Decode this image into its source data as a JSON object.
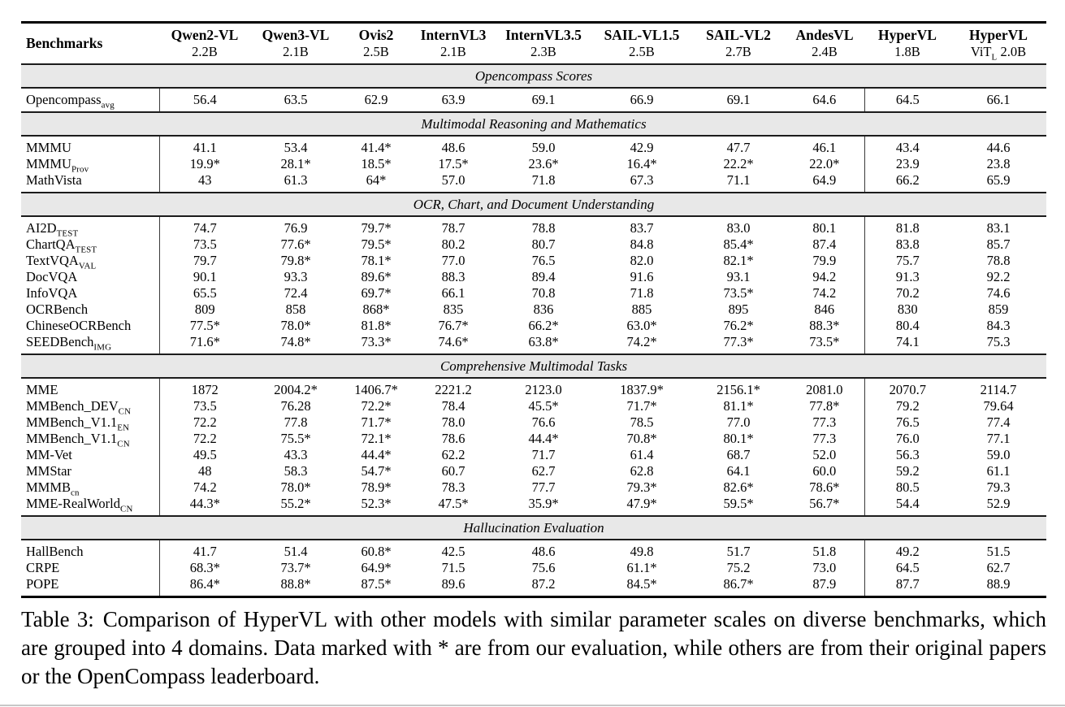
{
  "colors": {
    "band_bg": "#e8e8e8",
    "rule": "#000000",
    "text": "#000000"
  },
  "table": {
    "benchmarks_header": "Benchmarks",
    "columns": [
      {
        "name": "Qwen2-VL",
        "size": "2.2B"
      },
      {
        "name": "Qwen3-VL",
        "size": "2.1B"
      },
      {
        "name": "Ovis2",
        "size": "2.5B"
      },
      {
        "name": "InternVL3",
        "size": "2.1B"
      },
      {
        "name": "InternVL3.5",
        "size": "2.3B"
      },
      {
        "name": "SAIL-VL1.5",
        "size": "2.5B"
      },
      {
        "name": "SAIL-VL2",
        "size": "2.7B"
      },
      {
        "name": "AndesVL",
        "size": "2.4B"
      },
      {
        "name": "HyperVL",
        "size": "1.8B"
      },
      {
        "name": "HyperVL",
        "size": "ViT~L~ 2.0B"
      }
    ],
    "sections": [
      {
        "title": "Opencompass Scores",
        "rows": [
          {
            "label": "Opencompass~avg~",
            "values": [
              "56.4",
              "63.5",
              "62.9",
              "63.9",
              "69.1",
              "66.9",
              "69.1",
              "64.6",
              "64.5",
              "66.1"
            ]
          }
        ]
      },
      {
        "title": "Multimodal Reasoning and Mathematics",
        "rows": [
          {
            "label": "MMMU",
            "values": [
              "41.1",
              "53.4",
              "41.4*",
              "48.6",
              "59.0",
              "42.9",
              "47.7",
              "46.1",
              "43.4",
              "44.6"
            ]
          },
          {
            "label": "MMMU~Prov~",
            "values": [
              "19.9*",
              "28.1*",
              "18.5*",
              "17.5*",
              "23.6*",
              "16.4*",
              "22.2*",
              "22.0*",
              "23.9",
              "23.8"
            ]
          },
          {
            "label": "MathVista",
            "values": [
              "43",
              "61.3",
              "64*",
              "57.0",
              "71.8",
              "67.3",
              "71.1",
              "64.9",
              "66.2",
              "65.9"
            ]
          }
        ]
      },
      {
        "title": "OCR, Chart, and Document Understanding",
        "rows": [
          {
            "label": "AI2D~TEST~",
            "values": [
              "74.7",
              "76.9",
              "79.7*",
              "78.7",
              "78.8",
              "83.7",
              "83.0",
              "80.1",
              "81.8",
              "83.1"
            ]
          },
          {
            "label": "ChartQA~TEST~",
            "values": [
              "73.5",
              "77.6*",
              "79.5*",
              "80.2",
              "80.7",
              "84.8",
              "85.4*",
              "87.4",
              "83.8",
              "85.7"
            ]
          },
          {
            "label": "TextVQA~VAL~",
            "values": [
              "79.7",
              "79.8*",
              "78.1*",
              "77.0",
              "76.5",
              "82.0",
              "82.1*",
              "79.9",
              "75.7",
              "78.8"
            ]
          },
          {
            "label": "DocVQA",
            "values": [
              "90.1",
              "93.3",
              "89.6*",
              "88.3",
              "89.4",
              "91.6",
              "93.1",
              "94.2",
              "91.3",
              "92.2"
            ]
          },
          {
            "label": "InfoVQA",
            "values": [
              "65.5",
              "72.4",
              "69.7*",
              "66.1",
              "70.8",
              "71.8",
              "73.5*",
              "74.2",
              "70.2",
              "74.6"
            ]
          },
          {
            "label": "OCRBench",
            "values": [
              "809",
              "858",
              "868*",
              "835",
              "836",
              "885",
              "895",
              "846",
              "830",
              "859"
            ]
          },
          {
            "label": "ChineseOCRBench",
            "values": [
              "77.5*",
              "78.0*",
              "81.8*",
              "76.7*",
              "66.2*",
              "63.0*",
              "76.2*",
              "88.3*",
              "80.4",
              "84.3"
            ]
          },
          {
            "label": "SEEDBench~IMG~",
            "values": [
              "71.6*",
              "74.8*",
              "73.3*",
              "74.6*",
              "63.8*",
              "74.2*",
              "77.3*",
              "73.5*",
              "74.1",
              "75.3"
            ]
          }
        ]
      },
      {
        "title": "Comprehensive Multimodal Tasks",
        "rows": [
          {
            "label": "MME",
            "values": [
              "1872",
              "2004.2*",
              "1406.7*",
              "2221.2",
              "2123.0",
              "1837.9*",
              "2156.1*",
              "2081.0",
              "2070.7",
              "2114.7"
            ]
          },
          {
            "label": "MMBench_DEV~CN~",
            "values": [
              "73.5",
              "76.28",
              "72.2*",
              "78.4",
              "45.5*",
              "71.7*",
              "81.1*",
              "77.8*",
              "79.2",
              "79.64"
            ]
          },
          {
            "label": "MMBench_V1.1~EN~",
            "values": [
              "72.2",
              "77.8",
              "71.7*",
              "78.0",
              "76.6",
              "78.5",
              "77.0",
              "77.3",
              "76.5",
              "77.4"
            ]
          },
          {
            "label": "MMBench_V1.1~CN~",
            "values": [
              "72.2",
              "75.5*",
              "72.1*",
              "78.6",
              "44.4*",
              "70.8*",
              "80.1*",
              "77.3",
              "76.0",
              "77.1"
            ]
          },
          {
            "label": "MM-Vet",
            "values": [
              "49.5",
              "43.3",
              "44.4*",
              "62.2",
              "71.7",
              "61.4",
              "68.7",
              "52.0",
              "56.3",
              "59.0"
            ]
          },
          {
            "label": "MMStar",
            "values": [
              "48",
              "58.3",
              "54.7*",
              "60.7",
              "62.7",
              "62.8",
              "64.1",
              "60.0",
              "59.2",
              "61.1"
            ]
          },
          {
            "label": "MMMB~cn~",
            "values": [
              "74.2",
              "78.0*",
              "78.9*",
              "78.3",
              "77.7",
              "79.3*",
              "82.6*",
              "78.6*",
              "80.5",
              "79.3"
            ]
          },
          {
            "label": "MME-RealWorld~CN~",
            "values": [
              "44.3*",
              "55.2*",
              "52.3*",
              "47.5*",
              "35.9*",
              "47.9*",
              "59.5*",
              "56.7*",
              "54.4",
              "52.9"
            ]
          }
        ]
      },
      {
        "title": "Hallucination Evaluation",
        "rows": [
          {
            "label": "HallBench",
            "values": [
              "41.7",
              "51.4",
              "60.8*",
              "42.5",
              "48.6",
              "49.8",
              "51.7",
              "51.8",
              "49.2",
              "51.5"
            ]
          },
          {
            "label": "CRPE",
            "values": [
              "68.3*",
              "73.7*",
              "64.9*",
              "71.5",
              "75.6",
              "61.1*",
              "75.2",
              "73.0",
              "64.5",
              "62.7"
            ]
          },
          {
            "label": "POPE",
            "values": [
              "86.4*",
              "88.8*",
              "87.5*",
              "89.6",
              "87.2",
              "84.5*",
              "86.7*",
              "87.9",
              "87.7",
              "88.9"
            ]
          }
        ]
      }
    ]
  },
  "caption": {
    "label": "Table 3:",
    "text": "Comparison of HyperVL with other models with similar parameter scales on diverse benchmarks, which are grouped into 4 domains. Data marked with * are from our evaluation, while others are from their original papers or the OpenCompass leaderboard."
  }
}
